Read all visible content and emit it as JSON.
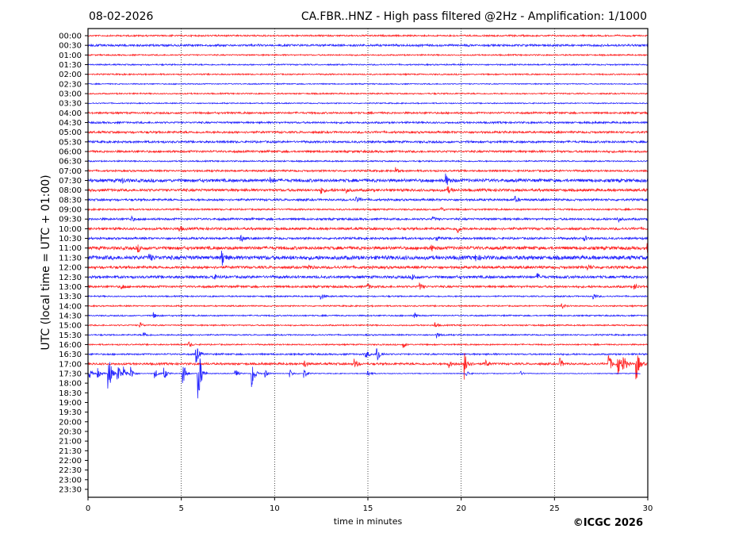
{
  "chart_data": {
    "type": "line",
    "title_left": "08-02-2026",
    "title": "CA.FBR..HNZ - High pass filtered @2Hz - Amplification: 1/1000",
    "xlabel": "time in minutes",
    "ylabel": "UTC (local time = UTC + 01:00)",
    "credit": "©ICGC 2026",
    "xlim": [
      0,
      30
    ],
    "x_ticks": [
      "0",
      "5",
      "10",
      "15",
      "20",
      "25",
      "30"
    ],
    "grid": "vertical dotted at every 5 minutes",
    "colors": {
      "even": "#ff0000",
      "odd": "#0000ff"
    },
    "row_labels": [
      "00:00",
      "00:30",
      "01:00",
      "01:30",
      "02:00",
      "02:30",
      "03:00",
      "03:30",
      "04:00",
      "04:30",
      "05:00",
      "05:30",
      "06:00",
      "06:30",
      "07:00",
      "07:30",
      "08:00",
      "08:30",
      "09:00",
      "09:30",
      "10:00",
      "10:30",
      "11:00",
      "11:30",
      "12:00",
      "12:30",
      "13:00",
      "13:30",
      "14:00",
      "14:30",
      "15:00",
      "15:30",
      "16:00",
      "16:30",
      "17:00",
      "17:30",
      "18:00",
      "18:30",
      "19:00",
      "19:30",
      "20:00",
      "20:30",
      "21:00",
      "21:30",
      "22:00",
      "22:30",
      "23:00",
      "23:30"
    ],
    "traces": [
      {
        "row": "00:00",
        "noise": 0.06,
        "events": []
      },
      {
        "row": "00:30",
        "noise": 0.08,
        "events": []
      },
      {
        "row": "01:00",
        "noise": 0.05,
        "events": []
      },
      {
        "row": "01:30",
        "noise": 0.05,
        "events": []
      },
      {
        "row": "02:00",
        "noise": 0.05,
        "events": []
      },
      {
        "row": "02:30",
        "noise": 0.04,
        "events": []
      },
      {
        "row": "03:00",
        "noise": 0.05,
        "events": []
      },
      {
        "row": "03:30",
        "noise": 0.04,
        "events": []
      },
      {
        "row": "04:00",
        "noise": 0.07,
        "events": []
      },
      {
        "row": "04:30",
        "noise": 0.07,
        "events": []
      },
      {
        "row": "05:00",
        "noise": 0.08,
        "events": []
      },
      {
        "row": "05:30",
        "noise": 0.08,
        "events": []
      },
      {
        "row": "06:00",
        "noise": 0.08,
        "events": []
      },
      {
        "row": "06:30",
        "noise": 0.05,
        "events": []
      },
      {
        "row": "07:00",
        "noise": 0.07,
        "events": [
          [
            16.5,
            0.3
          ]
        ]
      },
      {
        "row": "07:30",
        "noise": 0.12,
        "events": [
          [
            1.8,
            0.3
          ],
          [
            9.8,
            0.3
          ],
          [
            19.2,
            0.6
          ]
        ]
      },
      {
        "row": "08:00",
        "noise": 0.1,
        "events": [
          [
            12.5,
            0.3
          ],
          [
            13.8,
            0.3
          ],
          [
            19.3,
            0.3
          ]
        ]
      },
      {
        "row": "08:30",
        "noise": 0.08,
        "events": [
          [
            14.4,
            0.3
          ],
          [
            22.9,
            0.3
          ]
        ]
      },
      {
        "row": "09:00",
        "noise": 0.06,
        "events": [
          [
            18.9,
            0.3
          ]
        ]
      },
      {
        "row": "09:30",
        "noise": 0.08,
        "events": [
          [
            2.3,
            0.3
          ],
          [
            18.5,
            0.2
          ],
          [
            28.4,
            0.3
          ]
        ]
      },
      {
        "row": "10:00",
        "noise": 0.09,
        "events": [
          [
            4.9,
            0.3
          ],
          [
            19.8,
            0.4
          ]
        ]
      },
      {
        "row": "10:30",
        "noise": 0.08,
        "events": [
          [
            8.2,
            0.3
          ],
          [
            18.7,
            0.3
          ],
          [
            26.6,
            0.3
          ]
        ]
      },
      {
        "row": "11:00",
        "noise": 0.12,
        "events": [
          [
            2.7,
            0.3
          ],
          [
            18.4,
            0.3
          ],
          [
            30,
            0.4
          ]
        ]
      },
      {
        "row": "11:30",
        "noise": 0.15,
        "events": [
          [
            3.3,
            0.3
          ],
          [
            7.2,
            0.7
          ],
          [
            20.8,
            0.3
          ]
        ]
      },
      {
        "row": "12:00",
        "noise": 0.1,
        "events": [
          [
            11.8,
            0.3
          ],
          [
            26.8,
            0.3
          ]
        ]
      },
      {
        "row": "12:30",
        "noise": 0.1,
        "events": [
          [
            6.7,
            0.3
          ],
          [
            17.4,
            0.3
          ],
          [
            24.1,
            0.3
          ]
        ]
      },
      {
        "row": "13:00",
        "noise": 0.08,
        "events": [
          [
            1.8,
            0.3
          ],
          [
            15,
            0.3
          ],
          [
            17.8,
            0.3
          ],
          [
            29.3,
            0.3
          ]
        ]
      },
      {
        "row": "13:30",
        "noise": 0.05,
        "events": [
          [
            12.5,
            0.3
          ],
          [
            27.1,
            0.3
          ]
        ]
      },
      {
        "row": "14:00",
        "noise": 0.05,
        "events": [
          [
            25.4,
            0.3
          ]
        ]
      },
      {
        "row": "14:30",
        "noise": 0.05,
        "events": [
          [
            3.5,
            0.3
          ],
          [
            17.5,
            0.3
          ]
        ]
      },
      {
        "row": "15:00",
        "noise": 0.05,
        "events": [
          [
            2.8,
            0.3
          ],
          [
            18.6,
            0.3
          ]
        ]
      },
      {
        "row": "15:30",
        "noise": 0.05,
        "events": [
          [
            3,
            0.3
          ],
          [
            18.7,
            0.3
          ]
        ]
      },
      {
        "row": "16:00",
        "noise": 0.05,
        "events": [
          [
            5.4,
            0.3
          ],
          [
            16.9,
            0.3
          ]
        ]
      },
      {
        "row": "16:30",
        "noise": 0.06,
        "events": [
          [
            5.8,
            1.0
          ],
          [
            14.9,
            0.4
          ],
          [
            15.5,
            1.0
          ]
        ]
      },
      {
        "row": "17:00",
        "noise": 0.08,
        "events": [
          [
            11.6,
            0.4
          ],
          [
            14.3,
            0.5
          ],
          [
            19.3,
            0.5
          ],
          [
            20.2,
            1.6
          ],
          [
            21.3,
            0.4
          ],
          [
            25.3,
            0.5
          ],
          [
            27.9,
            1.1
          ],
          [
            28.4,
            1.3
          ],
          [
            28.7,
            1.0
          ],
          [
            29.4,
            1.6
          ]
        ]
      },
      {
        "row": "17:30",
        "noise": 0.03,
        "end": 29.6,
        "events": [
          [
            0.1,
            0.5
          ],
          [
            0.55,
            0.5
          ],
          [
            1.1,
            2.2
          ],
          [
            1.6,
            1.0
          ],
          [
            1.9,
            0.8
          ],
          [
            2.3,
            0.7
          ],
          [
            3.6,
            0.5
          ],
          [
            4.1,
            0.6
          ],
          [
            5.1,
            1.3
          ],
          [
            5.9,
            3.8
          ],
          [
            7.9,
            0.5
          ],
          [
            8.8,
            1.5
          ],
          [
            9.5,
            0.4
          ],
          [
            10.8,
            0.5
          ],
          [
            11.6,
            0.5
          ],
          [
            15,
            0.4
          ],
          [
            20.3,
            0.3
          ],
          [
            23.2,
            0.2
          ]
        ]
      }
    ]
  }
}
